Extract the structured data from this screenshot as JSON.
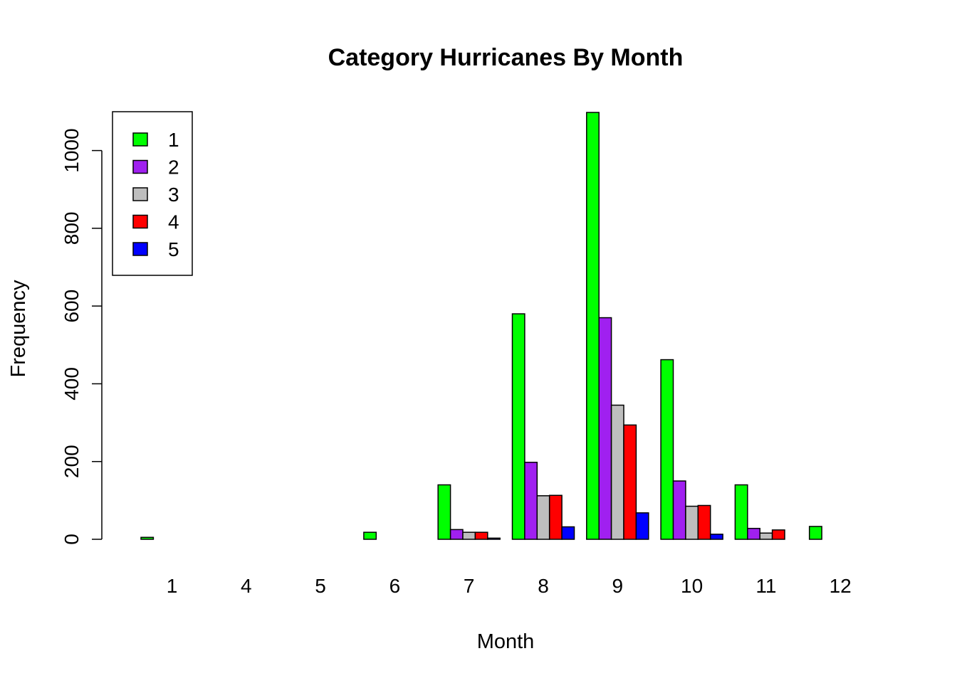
{
  "chart_data": {
    "type": "bar",
    "title": "Category Hurricanes By Month",
    "xlabel": "Month",
    "ylabel": "Frequency",
    "ylim": [
      0,
      1100
    ],
    "yticks": [
      "0",
      "200",
      "400",
      "600",
      "800",
      "1000"
    ],
    "categories": [
      "1",
      "4",
      "5",
      "6",
      "7",
      "8",
      "9",
      "10",
      "11",
      "12"
    ],
    "legend_position": "top-left",
    "series": [
      {
        "name": "1",
        "color": "#00FF00",
        "values": [
          5,
          0,
          0,
          18,
          140,
          580,
          1098,
          462,
          140,
          33
        ]
      },
      {
        "name": "2",
        "color": "#A020F0",
        "values": [
          0,
          0,
          0,
          0,
          25,
          198,
          570,
          150,
          28,
          0
        ]
      },
      {
        "name": "3",
        "color": "#BEBEBE",
        "values": [
          0,
          0,
          0,
          0,
          18,
          112,
          345,
          85,
          16,
          0
        ]
      },
      {
        "name": "4",
        "color": "#FF0000",
        "values": [
          0,
          0,
          0,
          0,
          18,
          113,
          294,
          87,
          24,
          0
        ]
      },
      {
        "name": "5",
        "color": "#0000FF",
        "values": [
          0,
          0,
          0,
          0,
          3,
          32,
          68,
          13,
          0,
          0
        ]
      }
    ]
  }
}
